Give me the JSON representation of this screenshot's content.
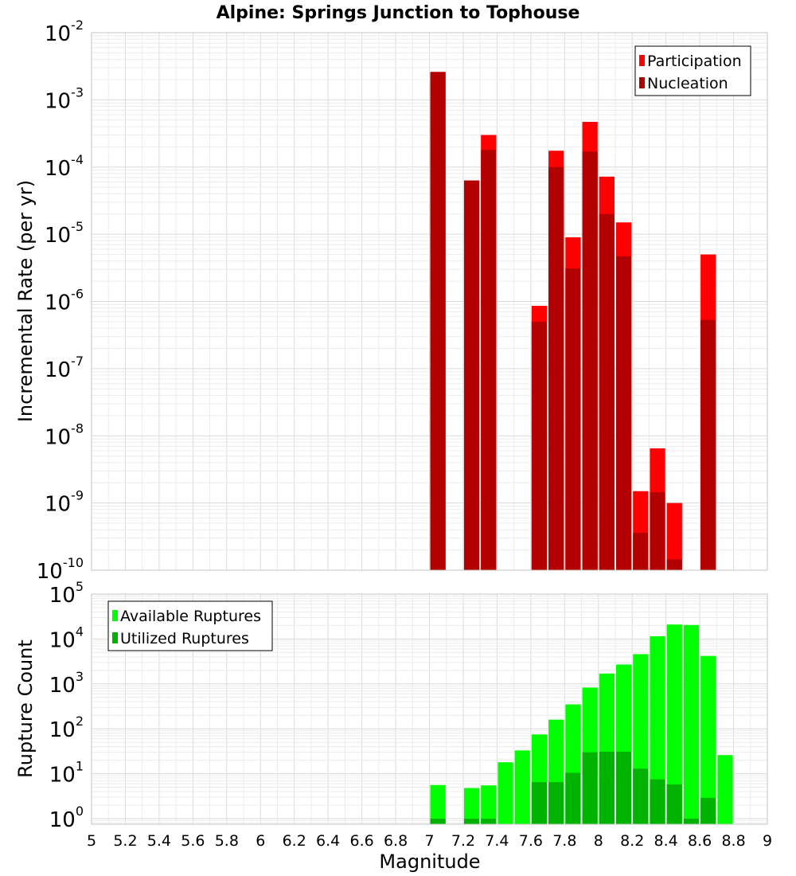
{
  "chart_data": {
    "type": "bar",
    "title": "Alpine: Springs Junction to Tophouse",
    "xlabel": "Magnitude",
    "x_range": [
      5,
      9
    ],
    "x_ticks": [
      "5",
      "5.2",
      "5.4",
      "5.6",
      "5.8",
      "6",
      "6.2",
      "6.4",
      "6.6",
      "6.8",
      "7",
      "7.2",
      "7.4",
      "7.6",
      "7.8",
      "8",
      "8.2",
      "8.4",
      "8.6",
      "8.8",
      "9"
    ],
    "bin_width": 0.1,
    "panels": [
      {
        "id": "rate",
        "ylabel": "Incremental Rate (per yr)",
        "yscale": "log",
        "ylim": [
          1e-10,
          0.01
        ],
        "y_ticks": [
          {
            "base": "10",
            "exp": "-10",
            "value": 1e-10
          },
          {
            "base": "10",
            "exp": "-9",
            "value": 1e-09
          },
          {
            "base": "10",
            "exp": "-8",
            "value": 1e-08
          },
          {
            "base": "10",
            "exp": "-7",
            "value": 1e-07
          },
          {
            "base": "10",
            "exp": "-6",
            "value": 1e-06
          },
          {
            "base": "10",
            "exp": "-5",
            "value": 1e-05
          },
          {
            "base": "10",
            "exp": "-4",
            "value": 0.0001
          },
          {
            "base": "10",
            "exp": "-3",
            "value": 0.001
          },
          {
            "base": "10",
            "exp": "-2",
            "value": 0.01
          }
        ],
        "legend_position": "top-right",
        "series": [
          {
            "name": "Participation",
            "color": "#ff0000",
            "x": [
              7.05,
              7.25,
              7.35,
              7.65,
              7.75,
              7.85,
              7.95,
              8.05,
              8.15,
              8.25,
              8.35,
              8.45,
              8.65
            ],
            "values": [
              0.0026,
              6.3e-05,
              0.0003,
              8.6e-07,
              0.000175,
              9e-06,
              0.00047,
              7.2e-05,
              1.5e-05,
              1.5e-09,
              6.5e-09,
              1e-09,
              5e-06
            ]
          },
          {
            "name": "Nucleation",
            "color": "#b30000",
            "x": [
              7.05,
              7.25,
              7.35,
              7.65,
              7.75,
              7.85,
              7.95,
              8.05,
              8.15,
              8.25,
              8.35,
              8.45,
              8.65
            ],
            "values": [
              0.0026,
              6.3e-05,
              0.00018,
              5e-07,
              0.0001,
              3.1e-06,
              0.00017,
              2e-05,
              4.7e-06,
              3.6e-10,
              1.45e-09,
              1.45e-10,
              5.3e-07
            ]
          }
        ]
      },
      {
        "id": "count",
        "ylabel": "Rupture Count",
        "yscale": "log",
        "ylim": [
          0.75,
          100000.0
        ],
        "y_ticks": [
          {
            "base": "10",
            "exp": "0",
            "value": 1
          },
          {
            "base": "10",
            "exp": "1",
            "value": 10
          },
          {
            "base": "10",
            "exp": "2",
            "value": 100
          },
          {
            "base": "10",
            "exp": "3",
            "value": 1000
          },
          {
            "base": "10",
            "exp": "4",
            "value": 10000
          },
          {
            "base": "10",
            "exp": "5",
            "value": 100000
          }
        ],
        "legend_position": "top-left",
        "series": [
          {
            "name": "Available Ruptures",
            "color": "#00ff00",
            "x": [
              7.05,
              7.25,
              7.35,
              7.45,
              7.55,
              7.65,
              7.75,
              7.85,
              7.95,
              8.05,
              8.15,
              8.25,
              8.35,
              8.45,
              8.55,
              8.65,
              8.75
            ],
            "values": [
              5.6,
              4.8,
              5.5,
              18,
              33,
              75,
              160,
              350,
              830,
              1700,
              2700,
              4600,
              11500,
              21000,
              20500,
              4200,
              26
            ]
          },
          {
            "name": "Utilized Ruptures",
            "color": "#00b300",
            "x": [
              7.05,
              7.25,
              7.35,
              7.45,
              7.55,
              7.65,
              7.75,
              7.85,
              7.95,
              8.05,
              8.15,
              8.25,
              8.35,
              8.45,
              8.55,
              8.65,
              8.75
            ],
            "values": [
              1,
              1,
              1,
              0,
              0,
              6.5,
              6.5,
              10.5,
              30,
              31,
              31,
              13,
              7.5,
              5.8,
              1,
              2.9,
              0
            ]
          }
        ]
      }
    ]
  }
}
